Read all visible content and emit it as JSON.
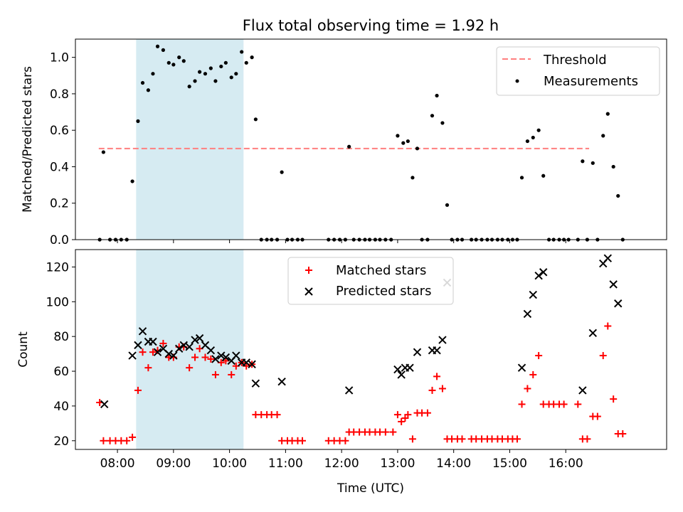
{
  "figure": {
    "title": "Flux total observing time = 1.92 h"
  },
  "colors": {
    "threshold": "#ff7f7f",
    "measurement": "#000000",
    "matched": "#ff0000",
    "predicted": "#000000",
    "span_fill": "#add8e6",
    "background": "#ffffff"
  },
  "chart_data": [
    {
      "type": "scatter",
      "ylabel": "Matched/Predicted stars",
      "ylim": [
        0,
        1.1
      ],
      "yticks": [
        "0.0",
        "0.2",
        "0.4",
        "0.6",
        "0.8",
        "1.0"
      ],
      "xlim_hours": [
        7.25,
        17.8
      ],
      "highlight_span": {
        "from": "08:20",
        "to": "10:15"
      },
      "legend": {
        "position": "upper right",
        "entries": [
          "Threshold",
          "Measurements"
        ]
      },
      "threshold": {
        "name": "Threshold",
        "value": 0.5,
        "from": "07:40",
        "to": "16:25",
        "style": "dashed"
      },
      "series": [
        {
          "name": "Measurements",
          "marker": "dot",
          "points": [
            [
              "07:41",
              0
            ],
            [
              "07:45",
              0.48
            ],
            [
              "07:52",
              0
            ],
            [
              "07:58",
              0
            ],
            [
              "08:04",
              0
            ],
            [
              "08:10",
              0
            ],
            [
              "08:16",
              0.32
            ],
            [
              "08:22",
              0.65
            ],
            [
              "08:27",
              0.86
            ],
            [
              "08:33",
              0.82
            ],
            [
              "08:38",
              0.91
            ],
            [
              "08:43",
              1.06
            ],
            [
              "08:49",
              1.04
            ],
            [
              "08:55",
              0.97
            ],
            [
              "09:00",
              0.96
            ],
            [
              "09:06",
              1.0
            ],
            [
              "09:11",
              0.98
            ],
            [
              "09:17",
              0.84
            ],
            [
              "09:23",
              0.87
            ],
            [
              "09:28",
              0.92
            ],
            [
              "09:34",
              0.91
            ],
            [
              "09:40",
              0.94
            ],
            [
              "09:45",
              0.87
            ],
            [
              "09:51",
              0.95
            ],
            [
              "09:56",
              0.97
            ],
            [
              "10:02",
              0.89
            ],
            [
              "10:07",
              0.91
            ],
            [
              "10:13",
              1.03
            ],
            [
              "10:18",
              0.97
            ],
            [
              "10:24",
              1.0
            ],
            [
              "10:28",
              0.66
            ],
            [
              "10:34",
              0
            ],
            [
              "10:40",
              0
            ],
            [
              "10:45",
              0
            ],
            [
              "10:51",
              0
            ],
            [
              "10:56",
              0.37
            ],
            [
              "11:02",
              0
            ],
            [
              "11:07",
              0
            ],
            [
              "11:13",
              0
            ],
            [
              "11:18",
              0
            ],
            [
              "11:46",
              0
            ],
            [
              "11:52",
              0
            ],
            [
              "11:58",
              0
            ],
            [
              "12:04",
              0
            ],
            [
              "12:08",
              0.51
            ],
            [
              "12:13",
              0
            ],
            [
              "12:19",
              0
            ],
            [
              "12:25",
              0
            ],
            [
              "12:30",
              0
            ],
            [
              "12:36",
              0
            ],
            [
              "12:41",
              0
            ],
            [
              "12:47",
              0
            ],
            [
              "12:53",
              0
            ],
            [
              "13:00",
              0.57
            ],
            [
              "13:06",
              0.53
            ],
            [
              "13:11",
              0.54
            ],
            [
              "13:16",
              0.34
            ],
            [
              "13:21",
              0.5
            ],
            [
              "13:26",
              0
            ],
            [
              "13:32",
              0
            ],
            [
              "13:37",
              0.68
            ],
            [
              "13:42",
              0.79
            ],
            [
              "13:48",
              0.64
            ],
            [
              "13:53",
              0.19
            ],
            [
              "13:58",
              0
            ],
            [
              "14:04",
              0
            ],
            [
              "14:09",
              0
            ],
            [
              "14:19",
              0
            ],
            [
              "14:24",
              0
            ],
            [
              "14:30",
              0
            ],
            [
              "14:36",
              0
            ],
            [
              "14:41",
              0
            ],
            [
              "14:47",
              0
            ],
            [
              "14:52",
              0
            ],
            [
              "14:58",
              0
            ],
            [
              "15:03",
              0
            ],
            [
              "15:08",
              0
            ],
            [
              "15:13",
              0.34
            ],
            [
              "15:19",
              0.54
            ],
            [
              "15:25",
              0.56
            ],
            [
              "15:31",
              0.6
            ],
            [
              "15:36",
              0.35
            ],
            [
              "15:42",
              0
            ],
            [
              "15:47",
              0
            ],
            [
              "15:53",
              0
            ],
            [
              "15:58",
              0
            ],
            [
              "16:03",
              0
            ],
            [
              "16:13",
              0
            ],
            [
              "16:18",
              0.43
            ],
            [
              "16:23",
              0
            ],
            [
              "16:29",
              0.42
            ],
            [
              "16:34",
              0
            ],
            [
              "16:40",
              0.57
            ],
            [
              "16:45",
              0.69
            ],
            [
              "16:51",
              0.4
            ],
            [
              "16:56",
              0.24
            ],
            [
              "17:01",
              0
            ]
          ]
        }
      ]
    },
    {
      "type": "scatter",
      "xlabel": "Time (UTC)",
      "ylabel": "Count",
      "ylim": [
        15,
        130
      ],
      "yticks": [
        "20",
        "40",
        "60",
        "80",
        "100",
        "120"
      ],
      "xlim_hours": [
        7.25,
        17.8
      ],
      "xticks": [
        "08:00",
        "09:00",
        "10:00",
        "11:00",
        "12:00",
        "13:00",
        "14:00",
        "15:00",
        "16:00"
      ],
      "highlight_span": {
        "from": "08:20",
        "to": "10:15"
      },
      "legend": {
        "position": "upper center",
        "entries": [
          "Matched stars",
          "Predicted stars"
        ]
      },
      "series": [
        {
          "name": "Matched stars",
          "marker": "plus",
          "points": [
            [
              "07:41",
              42
            ],
            [
              "07:45",
              20
            ],
            [
              "07:52",
              20
            ],
            [
              "07:58",
              20
            ],
            [
              "08:04",
              20
            ],
            [
              "08:10",
              20
            ],
            [
              "08:16",
              22
            ],
            [
              "08:22",
              49
            ],
            [
              "08:27",
              71
            ],
            [
              "08:33",
              62
            ],
            [
              "08:38",
              71
            ],
            [
              "08:43",
              72
            ],
            [
              "08:49",
              76
            ],
            [
              "08:55",
              68
            ],
            [
              "09:00",
              68
            ],
            [
              "09:06",
              74
            ],
            [
              "09:11",
              74
            ],
            [
              "09:17",
              62
            ],
            [
              "09:23",
              68
            ],
            [
              "09:28",
              73
            ],
            [
              "09:34",
              68
            ],
            [
              "09:40",
              67
            ],
            [
              "09:45",
              58
            ],
            [
              "09:51",
              65
            ],
            [
              "09:56",
              66
            ],
            [
              "10:02",
              58
            ],
            [
              "10:07",
              63
            ],
            [
              "10:13",
              65
            ],
            [
              "10:18",
              63
            ],
            [
              "10:24",
              64
            ],
            [
              "10:28",
              35
            ],
            [
              "10:34",
              35
            ],
            [
              "10:40",
              35
            ],
            [
              "10:45",
              35
            ],
            [
              "10:51",
              35
            ],
            [
              "10:56",
              20
            ],
            [
              "11:02",
              20
            ],
            [
              "11:07",
              20
            ],
            [
              "11:13",
              20
            ],
            [
              "11:18",
              20
            ],
            [
              "11:46",
              20
            ],
            [
              "11:52",
              20
            ],
            [
              "11:58",
              20
            ],
            [
              "12:04",
              20
            ],
            [
              "12:08",
              25
            ],
            [
              "12:13",
              25
            ],
            [
              "12:19",
              25
            ],
            [
              "12:25",
              25
            ],
            [
              "12:30",
              25
            ],
            [
              "12:36",
              25
            ],
            [
              "12:41",
              25
            ],
            [
              "12:47",
              25
            ],
            [
              "12:55",
              25
            ],
            [
              "13:00",
              35
            ],
            [
              "13:04",
              31
            ],
            [
              "13:08",
              33
            ],
            [
              "13:11",
              35
            ],
            [
              "13:16",
              21
            ],
            [
              "13:21",
              36
            ],
            [
              "13:26",
              36
            ],
            [
              "13:32",
              36
            ],
            [
              "13:37",
              49
            ],
            [
              "13:42",
              57
            ],
            [
              "13:48",
              50
            ],
            [
              "13:53",
              21
            ],
            [
              "13:58",
              21
            ],
            [
              "14:04",
              21
            ],
            [
              "14:09",
              21
            ],
            [
              "14:19",
              21
            ],
            [
              "14:24",
              21
            ],
            [
              "14:30",
              21
            ],
            [
              "14:36",
              21
            ],
            [
              "14:41",
              21
            ],
            [
              "14:47",
              21
            ],
            [
              "14:52",
              21
            ],
            [
              "14:58",
              21
            ],
            [
              "15:03",
              21
            ],
            [
              "15:08",
              21
            ],
            [
              "15:13",
              41
            ],
            [
              "15:19",
              50
            ],
            [
              "15:25",
              58
            ],
            [
              "15:31",
              69
            ],
            [
              "15:36",
              41
            ],
            [
              "15:42",
              41
            ],
            [
              "15:47",
              41
            ],
            [
              "15:53",
              41
            ],
            [
              "15:58",
              41
            ],
            [
              "16:13",
              41
            ],
            [
              "16:18",
              21
            ],
            [
              "16:23",
              21
            ],
            [
              "16:29",
              34
            ],
            [
              "16:34",
              34
            ],
            [
              "16:40",
              69
            ],
            [
              "16:45",
              86
            ],
            [
              "16:51",
              44
            ],
            [
              "16:56",
              24
            ],
            [
              "17:01",
              24
            ]
          ]
        },
        {
          "name": "Predicted stars",
          "marker": "x",
          "points": [
            [
              "07:46",
              41
            ],
            [
              "08:16",
              69
            ],
            [
              "08:22",
              75
            ],
            [
              "08:27",
              83
            ],
            [
              "08:33",
              77
            ],
            [
              "08:38",
              77
            ],
            [
              "08:43",
              71
            ],
            [
              "08:49",
              73
            ],
            [
              "08:55",
              70
            ],
            [
              "09:00",
              69
            ],
            [
              "09:06",
              73
            ],
            [
              "09:11",
              75
            ],
            [
              "09:17",
              74
            ],
            [
              "09:23",
              78
            ],
            [
              "09:28",
              79
            ],
            [
              "09:34",
              75
            ],
            [
              "09:40",
              72
            ],
            [
              "09:45",
              67
            ],
            [
              "09:51",
              69
            ],
            [
              "09:56",
              68
            ],
            [
              "10:02",
              66
            ],
            [
              "10:07",
              69
            ],
            [
              "10:13",
              65
            ],
            [
              "10:18",
              65
            ],
            [
              "10:24",
              64
            ],
            [
              "10:28",
              53
            ],
            [
              "10:56",
              54
            ],
            [
              "12:08",
              49
            ],
            [
              "13:00",
              61
            ],
            [
              "13:04",
              58
            ],
            [
              "13:08",
              62
            ],
            [
              "13:13",
              62
            ],
            [
              "13:21",
              71
            ],
            [
              "13:37",
              72
            ],
            [
              "13:42",
              72
            ],
            [
              "13:48",
              78
            ],
            [
              "13:53",
              111
            ],
            [
              "15:13",
              62
            ],
            [
              "15:19",
              93
            ],
            [
              "15:25",
              104
            ],
            [
              "15:31",
              115
            ],
            [
              "15:36",
              117
            ],
            [
              "16:18",
              49
            ],
            [
              "16:29",
              82
            ],
            [
              "16:40",
              122
            ],
            [
              "16:45",
              125
            ],
            [
              "16:51",
              110
            ],
            [
              "16:56",
              99
            ]
          ]
        }
      ]
    }
  ]
}
